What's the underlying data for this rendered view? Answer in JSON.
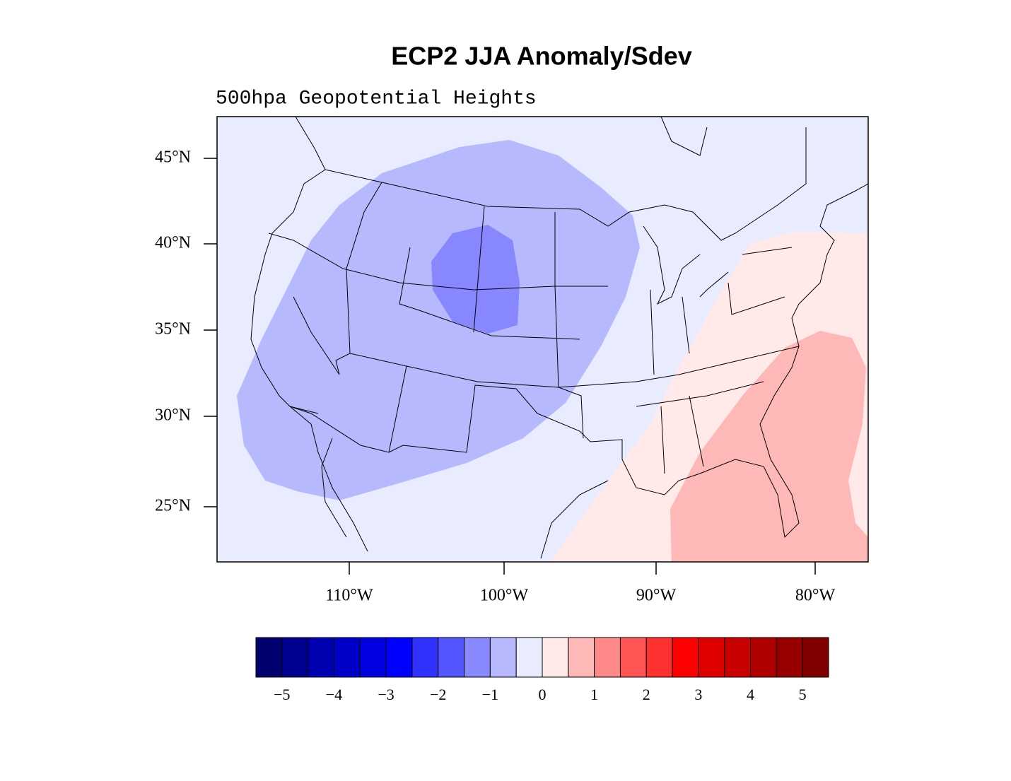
{
  "title": "ECP2 JJA Anomaly/Sdev",
  "subtitle": "500hpa Geopotential Heights",
  "map": {
    "lat_labels": [
      "45°N",
      "40°N",
      "35°N",
      "30°N",
      "25°N"
    ],
    "lon_labels": [
      "110°W",
      "100°W",
      "90°W",
      "80°W"
    ]
  },
  "colorbar": {
    "colors": [
      "#00006e",
      "#000090",
      "#0000b0",
      "#0000c8",
      "#0000e0",
      "#0000ff",
      "#3030ff",
      "#5555ff",
      "#8888ff",
      "#b8b8ff",
      "#e9ebff",
      "#ffe9e9",
      "#ffb8b8",
      "#ff8888",
      "#ff5555",
      "#ff3030",
      "#ff0000",
      "#e00000",
      "#c80000",
      "#b00000",
      "#980000",
      "#800000"
    ],
    "labels": [
      "−5",
      "−4",
      "−3",
      "−2",
      "−1",
      "0",
      "1",
      "2",
      "3",
      "4",
      "5"
    ]
  }
}
